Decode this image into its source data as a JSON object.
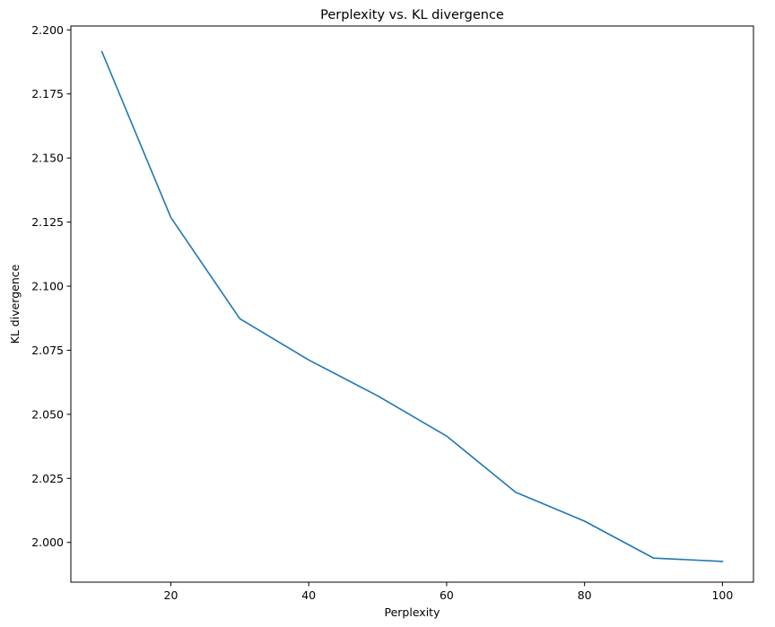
{
  "chart_data": {
    "type": "line",
    "title": "Perplexity vs. KL divergence",
    "xlabel": "Perplexity",
    "ylabel": "KL divergence",
    "xlim": [
      5.5,
      104.5
    ],
    "ylim": [
      1.9845,
      2.2015
    ],
    "x_ticks": [
      20,
      40,
      60,
      80,
      100
    ],
    "x_tick_labels": [
      "20",
      "40",
      "60",
      "80",
      "100"
    ],
    "y_ticks": [
      2.0,
      2.025,
      2.05,
      2.075,
      2.1,
      2.125,
      2.15,
      2.175,
      2.2
    ],
    "y_tick_labels": [
      "2.000",
      "2.025",
      "2.050",
      "2.075",
      "2.100",
      "2.125",
      "2.150",
      "2.175",
      "2.200"
    ],
    "grid": false,
    "series": [
      {
        "color": "#1f77b4",
        "x": [
          10,
          20,
          30,
          40,
          50,
          60,
          70,
          80,
          90,
          100
        ],
        "y": [
          2.1915,
          2.1268,
          2.0873,
          2.0712,
          2.0572,
          2.0415,
          2.0196,
          2.0083,
          1.9939,
          1.9926
        ]
      }
    ]
  }
}
